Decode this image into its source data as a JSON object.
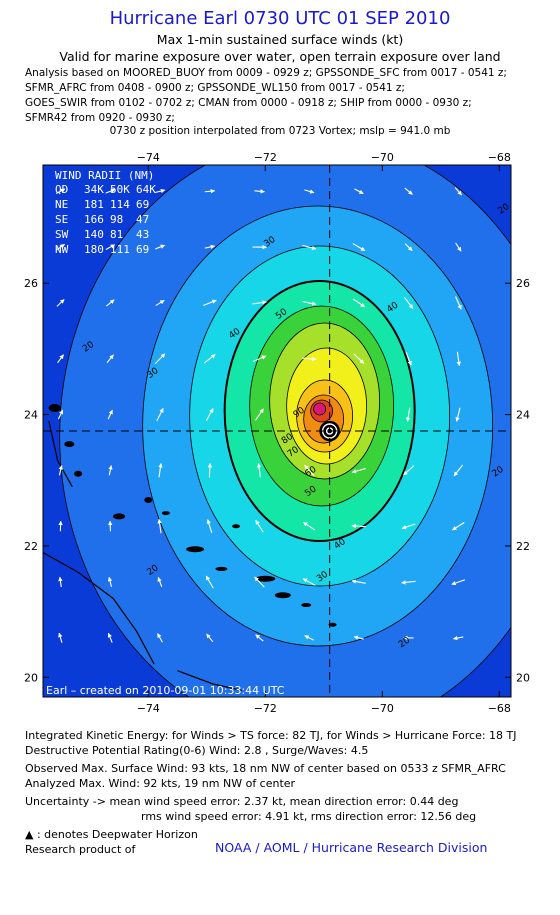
{
  "header": {
    "title": "Hurricane Earl 0730 UTC 01 SEP 2010",
    "subtitle1": "Max 1-min sustained surface winds (kt)",
    "subtitle2": "Valid for marine exposure over water, open terrain exposure over land",
    "analysis_lines": [
      "Analysis based on MOORED_BUOY from 0009 - 0929 z; GPSSONDE_SFC from 0017 - 0541 z;",
      "SFMR_AFRC from 0408 - 0900 z; GPSSONDE_WL150 from 0017 - 0541 z;",
      "GOES_SWIR from 0102 - 0702 z; CMAN from 0000 - 0918 z; SHIP from 0000 - 0930 z;",
      "SFMR42 from 0920 - 0930 z;"
    ],
    "position_note": "0730 z position interpolated from 0723 Vortex; mslp = 941.0 mb"
  },
  "map": {
    "lon_ticks": [
      "−74",
      "−72",
      "−70",
      "−68"
    ],
    "lat_ticks": [
      "26",
      "24",
      "22",
      "20"
    ],
    "lon_values": [
      -74,
      -72,
      -70,
      -68
    ],
    "lat_values": [
      26,
      24,
      22,
      20
    ],
    "lon_range": [
      -75.8,
      -67.8
    ],
    "lat_range": [
      19.7,
      27.8
    ],
    "center": {
      "lon": -70.9,
      "lat": 23.75
    },
    "contour_labels": [
      "20",
      "20",
      "20",
      "20",
      "20",
      "30",
      "30",
      "30",
      "40",
      "40",
      "40",
      "50",
      "50",
      "60",
      "70",
      "80",
      "90"
    ],
    "wind_radii": {
      "title": "WIND RADII (NM)",
      "header": [
        "QD",
        "34K",
        "50K",
        "64K"
      ],
      "rows": [
        [
          "NE",
          "181",
          "114",
          "69"
        ],
        [
          "SE",
          "166",
          "98",
          "47"
        ],
        [
          "SW",
          "140",
          "81",
          "43"
        ],
        [
          "NW",
          "180",
          "111",
          "69"
        ]
      ]
    },
    "credit": "Earl – created on 2010-09-01 10:33:44 UTC",
    "colors": {
      "ocean": "#0b3bd6",
      "level20": "#1f70ea",
      "level30": "#21a6f5",
      "level40": "#17d6e8",
      "level50": "#14e6a8",
      "level60": "#3ad23a",
      "level70": "#a6e02a",
      "level80": "#f2f01a",
      "level90": "#f7c118",
      "level100": "#f08c12",
      "level110": "#e0451a",
      "level120": "#d8187a",
      "land": "#000000"
    }
  },
  "footer": {
    "ike": "Integrated Kinetic Energy:  for Winds > TS force: 82 TJ,  for Winds > Hurricane Force: 18 TJ",
    "dpr": "Destructive Potential Rating(0-6)   Wind: 2.8 , Surge/Waves: 4.5",
    "obs_max": "Observed Max. Surface Wind: 93 kts, 18 nm NW of center based on 0533 z SFMR_AFRC",
    "analyzed_max": "Analyzed Max. Wind: 92 kts, 19 nm NW of center",
    "uncertainty1": "Uncertainty -> mean wind speed error: 2.37 kt,   mean direction error: 0.44 deg",
    "uncertainty2": "rms wind speed error: 4.91 kt,   rms direction error: 12.56 deg",
    "deepwater": ": denotes Deepwater Horizon",
    "research": "Research product of",
    "org": "NOAA / AOML / Hurricane Research Division"
  }
}
